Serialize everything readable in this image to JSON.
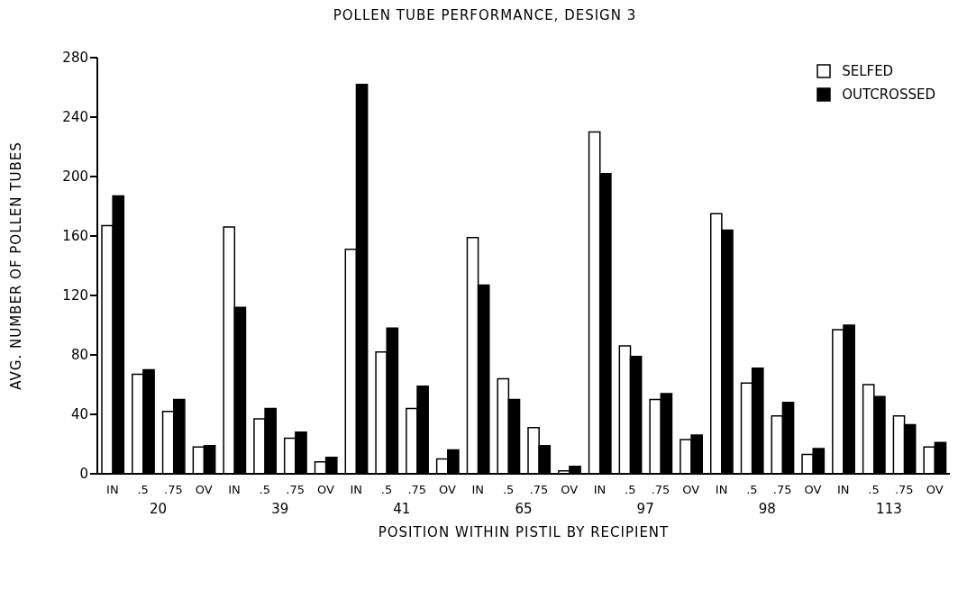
{
  "chart_data": {
    "type": "bar",
    "title": "POLLEN TUBE PERFORMANCE, DESIGN 3",
    "xlabel": "POSITION WITHIN PISTIL BY RECIPIENT",
    "ylabel": "AVG. NUMBER OF POLLEN TUBES",
    "categories": [
      "IN",
      ".5",
      ".75",
      "OV",
      "IN",
      ".5",
      ".75",
      "OV",
      "IN",
      ".5",
      ".75",
      "OV",
      "IN",
      ".5",
      ".75",
      "OV",
      "IN",
      ".5",
      ".75",
      "OV",
      "IN",
      ".5",
      ".75",
      "OV",
      "IN",
      ".5",
      ".75",
      "OV"
    ],
    "annotations": [
      "20",
      "39",
      "41",
      "65",
      "97",
      "98",
      "113"
    ],
    "series": [
      {
        "name": "SELFED",
        "color": "#ffffff",
        "values": [
          167,
          67,
          42,
          18,
          166,
          37,
          24,
          8,
          151,
          82,
          44,
          10,
          159,
          64,
          31,
          2,
          230,
          86,
          50,
          23,
          175,
          61,
          39,
          13,
          97,
          60,
          39,
          18
        ]
      },
      {
        "name": "OUTCROSSED",
        "color": "#000000",
        "values": [
          187,
          70,
          50,
          19,
          112,
          44,
          28,
          11,
          262,
          98,
          59,
          16,
          127,
          50,
          19,
          5,
          202,
          79,
          54,
          26,
          164,
          71,
          48,
          17,
          100,
          52,
          33,
          21
        ]
      }
    ],
    "ylim": [
      0,
      280
    ],
    "yticks": [
      0,
      40,
      80,
      120,
      160,
      200,
      240,
      280
    ],
    "grid": false,
    "legend": "top right"
  }
}
